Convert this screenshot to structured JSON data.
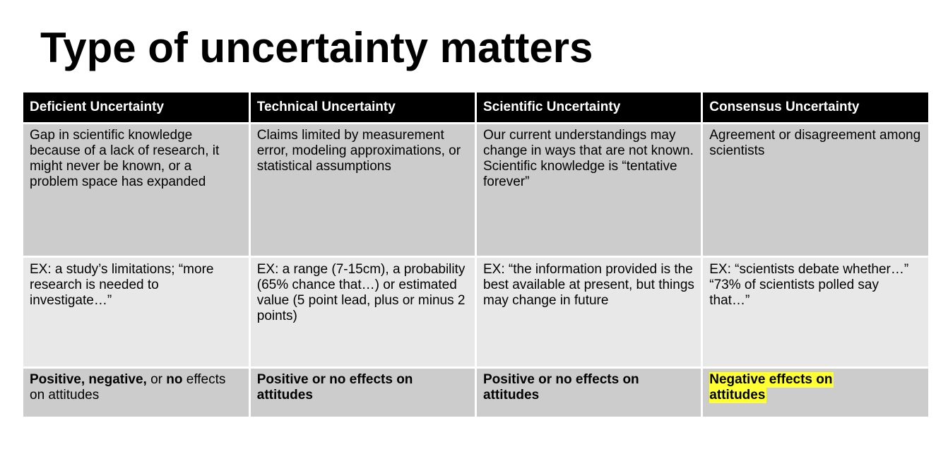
{
  "title": "Type of uncertainty matters",
  "highlight_color": "#ffff33",
  "columns": [
    {
      "header": "Deficient Uncertainty",
      "definition": "Gap in scientific knowledge because of a lack of research, it might never be known, or a problem space has expanded",
      "example": "EX: a study’s limitations; “more research is needed to investigate…”",
      "effect": {
        "part1": "Positive, negative,",
        "part2": " or ",
        "part3": "no",
        "part4": " effects on attitudes"
      }
    },
    {
      "header": "Technical Uncertainty",
      "definition": "Claims limited by measurement error, modeling approximations, or statistical assumptions",
      "example": "EX: a range (7-15cm), a probability (65% chance that…) or estimated value (5 point lead, plus or minus 2 points)",
      "effect": "Positive or no effects on attitudes"
    },
    {
      "header": "Scientific Uncertainty",
      "definition": "Our current understandings may change in ways that are not known. Scientific knowledge is “tentative forever”",
      "example": "EX: “the information provided is the best available at present, but things may change in future",
      "effect": "Positive or no effects on attitudes"
    },
    {
      "header": "Consensus Uncertainty",
      "definition": "Agreement or disagreement among scientists",
      "example": "EX: “scientists debate whether…” “73% of scientists polled say that…”",
      "effect_line1": "Negative effects on",
      "effect_line2": "attitudes"
    }
  ]
}
